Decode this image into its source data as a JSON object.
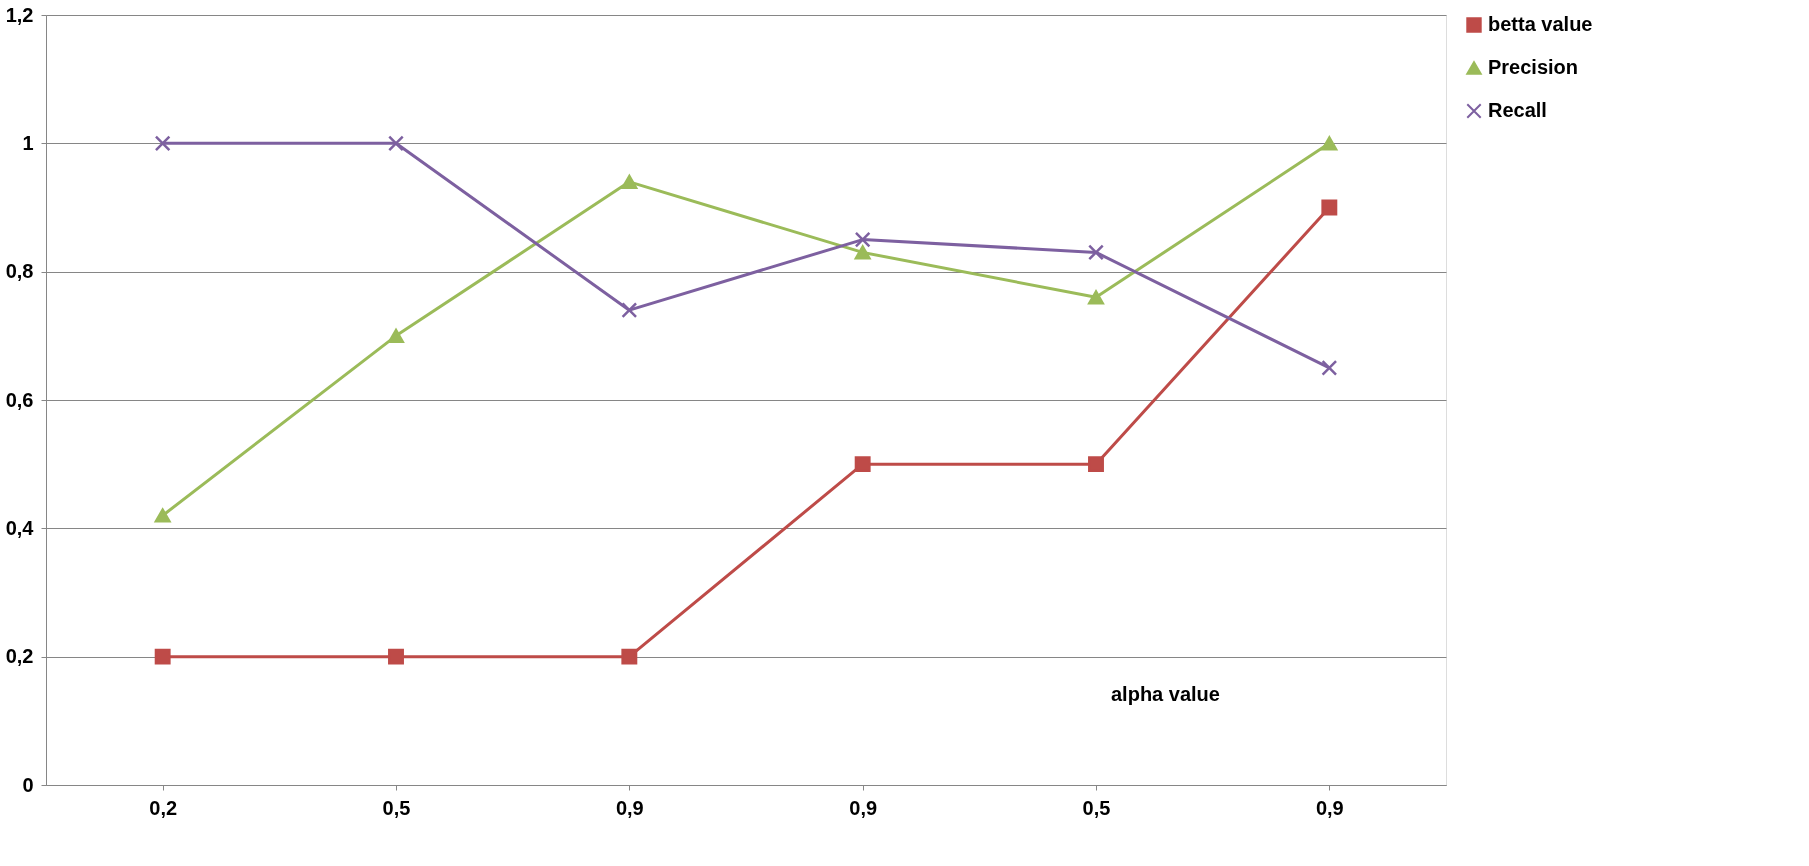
{
  "chart_data": {
    "type": "line",
    "categories": [
      "0,2",
      "0,5",
      "0,9",
      "0,9",
      "0,5",
      "0,9"
    ],
    "series": [
      {
        "name": "betta value",
        "color": "#be4b48",
        "marker": "square",
        "values": [
          0.2,
          0.2,
          0.2,
          0.5,
          0.5,
          0.9
        ]
      },
      {
        "name": "Precision",
        "color": "#9bbb59",
        "marker": "triangle",
        "values": [
          0.42,
          0.7,
          0.94,
          0.83,
          0.76,
          1.0
        ]
      },
      {
        "name": "Recall",
        "color": "#7d60a0",
        "marker": "cross",
        "values": [
          1.0,
          1.0,
          0.74,
          0.85,
          0.83,
          0.65
        ]
      }
    ],
    "ylim": [
      0,
      1.2
    ],
    "yticks": [
      0,
      {
        "value": 0.2,
        "label": "0,2"
      },
      {
        "value": 0.4,
        "label": "0,4"
      },
      {
        "value": 0.6,
        "label": "0,6"
      },
      {
        "value": 0.8,
        "label": "0,8"
      },
      1,
      {
        "value": 1.2,
        "label": "1,2"
      }
    ],
    "annotations": [
      "alpha value"
    ],
    "grid": "y",
    "legend": "right",
    "line_style": "solid"
  }
}
